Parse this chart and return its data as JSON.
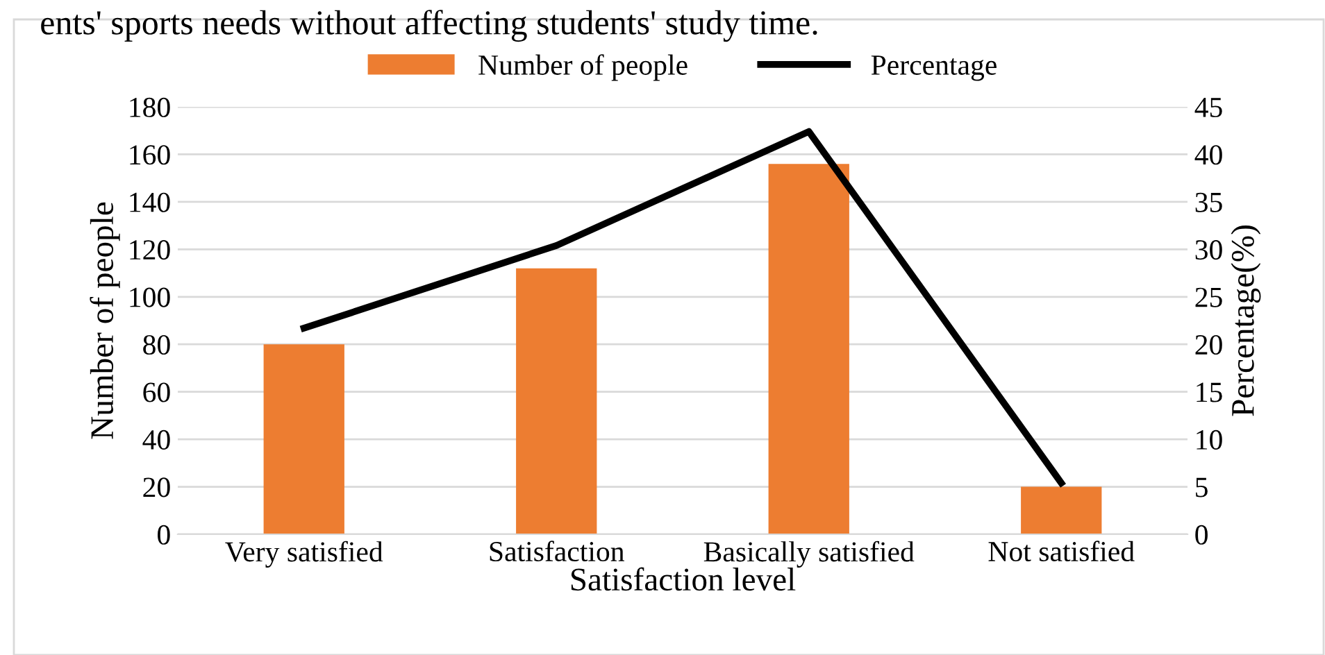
{
  "chart_data": {
    "type": "bar",
    "categories": [
      "Very satisfied",
      "Satisfaction",
      "Basically satisfied",
      "Not satisfied"
    ],
    "series": [
      {
        "name": "Number of people",
        "color": "#ed7d31",
        "values": [
          80,
          112,
          156,
          20
        ]
      },
      {
        "name": "Percentage",
        "type": "line",
        "axis": "y2",
        "color": "#000000",
        "values": [
          21.7,
          30.4,
          42.4,
          5.4
        ]
      }
    ],
    "xlabel": "Satisfaction level",
    "ylabel": "Number of people",
    "y2label": "Percentage(%)",
    "ylim": [
      0,
      180
    ],
    "yticks": [
      0,
      20,
      40,
      60,
      80,
      100,
      120,
      140,
      160,
      180
    ],
    "y2lim": [
      0,
      45
    ],
    "y2ticks": [
      0,
      5,
      10,
      15,
      20,
      25,
      30,
      35,
      40,
      45
    ],
    "grid": "y",
    "legend": "top",
    "marker": "none",
    "line_style": "solid",
    "annotations": [
      "ents' sports needs without affecting students' study time."
    ]
  }
}
